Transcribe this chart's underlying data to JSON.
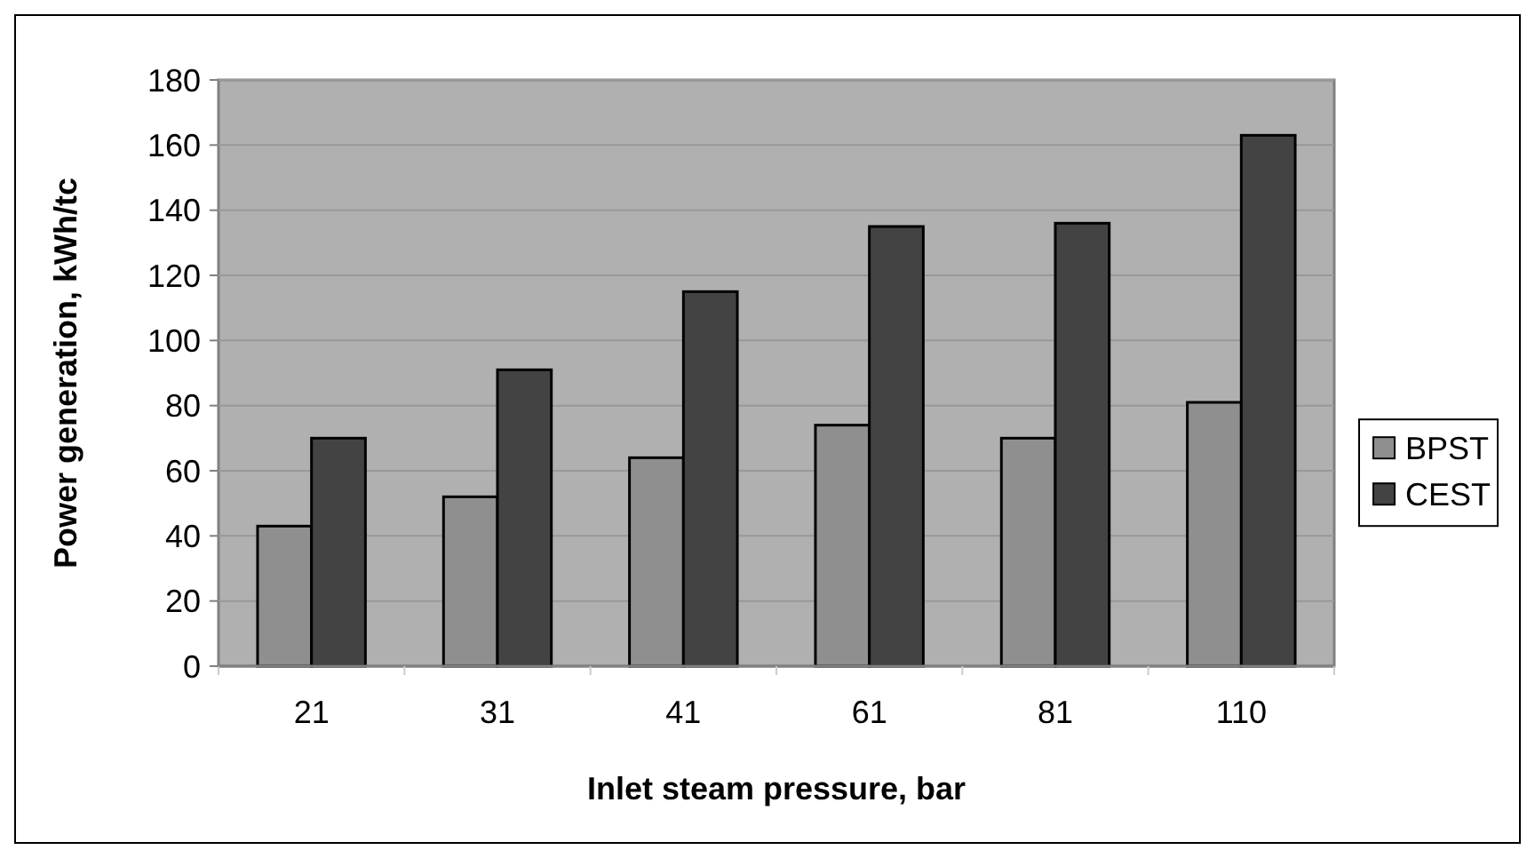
{
  "chart_data": {
    "type": "bar",
    "xlabel": "Inlet steam pressure, bar",
    "ylabel": "Power generation, kWh/tc",
    "categories": [
      "21",
      "31",
      "41",
      "61",
      "81",
      "110"
    ],
    "series": [
      {
        "name": "BPST",
        "color": "#8f8f8f",
        "values": [
          43,
          52,
          64,
          74,
          70,
          81
        ]
      },
      {
        "name": "CEST",
        "color": "#434343",
        "values": [
          70,
          91,
          115,
          135,
          136,
          163
        ]
      }
    ],
    "ylim": [
      0,
      180
    ],
    "yticks": [
      0,
      20,
      40,
      60,
      80,
      100,
      120,
      140,
      160,
      180
    ],
    "grid": "y",
    "legend": "right"
  }
}
